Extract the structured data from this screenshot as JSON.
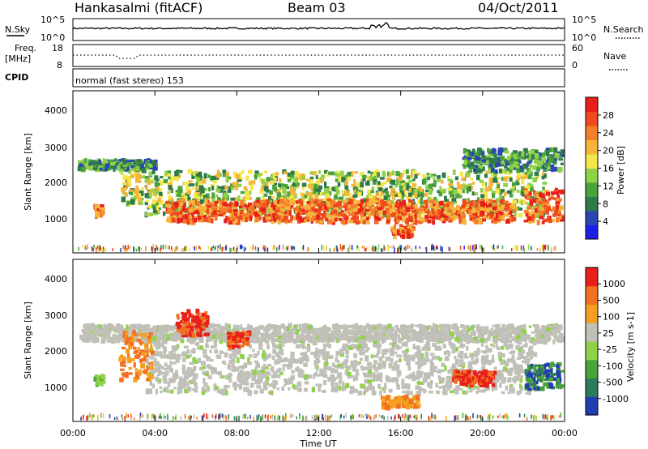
{
  "header": {
    "station": "Hankasalmi (fitACF)",
    "beam": "Beam 03",
    "date": "04/Oct/2011"
  },
  "noise_panel": {
    "left_label": "N.Sky",
    "right_label": "N.Search",
    "left_ticks": [
      "10^5",
      "10^0"
    ],
    "right_ticks": [
      "10^5",
      "10^0"
    ]
  },
  "freq_panel": {
    "left_label_line1": "Freq.",
    "left_label_line2": "[MHz]",
    "right_label": "Nave",
    "left_ticks": [
      "18",
      "8"
    ],
    "right_ticks": [
      "60",
      "0"
    ]
  },
  "cpid_panel": {
    "label": "CPID",
    "text": "normal (fast stereo) 153"
  },
  "time_axis": {
    "label": "Time UT",
    "ticks": [
      "00:00",
      "04:00",
      "08:00",
      "12:00",
      "16:00",
      "20:00",
      "00:00"
    ]
  },
  "chart_data": [
    {
      "type": "heatmap",
      "name": "power",
      "ylabel": "Slant Range [km]",
      "yticks": [
        "1000",
        "2000",
        "3000",
        "4000"
      ],
      "ylim": [
        180,
        4600
      ],
      "xlim_hours": [
        0,
        24
      ],
      "colorbar": {
        "label": "Power [dB]",
        "ticks": [
          "4",
          "8",
          "12",
          "16",
          "20",
          "24",
          "28"
        ],
        "colors": [
          "#1f1fe8",
          "#2a46b0",
          "#2f7a4a",
          "#49a23a",
          "#8fd24a",
          "#f3e84a",
          "#f6b43a",
          "#f37f2a",
          "#ee4a1e",
          "#e8201a"
        ]
      },
      "bands": [
        {
          "t0": 0.2,
          "t1": 23.8,
          "r0": 250,
          "r1": 350,
          "level": "scatter"
        },
        {
          "t0": 1.0,
          "t1": 1.4,
          "r0": 1150,
          "r1": 1450,
          "level": "strong"
        },
        {
          "t0": 2.3,
          "t1": 3.4,
          "r0": 1500,
          "r1": 2500,
          "level": "mid"
        },
        {
          "t0": 3.5,
          "t1": 23.0,
          "r0": 1200,
          "r1": 2400,
          "level": "mid"
        },
        {
          "t0": 4.5,
          "t1": 21.5,
          "r0": 1000,
          "r1": 1600,
          "level": "strong"
        },
        {
          "t0": 0.2,
          "t1": 4.0,
          "r0": 2450,
          "r1": 2700,
          "level": "weak"
        },
        {
          "t0": 19.0,
          "t1": 23.8,
          "r0": 2400,
          "r1": 3000,
          "level": "weak"
        },
        {
          "t0": 15.5,
          "t1": 16.5,
          "r0": 600,
          "r1": 900,
          "level": "strong"
        },
        {
          "t0": 22.0,
          "t1": 23.8,
          "r0": 1000,
          "r1": 1900,
          "level": "strong"
        }
      ]
    },
    {
      "type": "heatmap",
      "name": "velocity",
      "ylabel": "Slant Range [km]",
      "yticks": [
        "1000",
        "2000",
        "3000",
        "4000"
      ],
      "ylim": [
        180,
        4600
      ],
      "xlim_hours": [
        0,
        24
      ],
      "colorbar": {
        "label": "Velocity [m s-1]",
        "ticks": [
          "1000",
          "500",
          "100",
          "25",
          "-25",
          "-100",
          "-500",
          "-1000"
        ],
        "colors": [
          "#1f3fb0",
          "#2f7a5a",
          "#49a23a",
          "#8fd24a",
          "#c0c0b8",
          "#f3a020",
          "#f37020",
          "#e8201a"
        ]
      },
      "bands": [
        {
          "t0": 0.2,
          "t1": 23.8,
          "r0": 250,
          "r1": 350,
          "level": "scatter"
        },
        {
          "t0": 0.3,
          "t1": 23.8,
          "r0": 2350,
          "r1": 2800,
          "level": "gray"
        },
        {
          "t0": 3.5,
          "t1": 22.5,
          "r0": 950,
          "r1": 2300,
          "level": "gray"
        },
        {
          "t0": 2.2,
          "t1": 3.8,
          "r0": 1300,
          "r1": 2600,
          "level": "orange"
        },
        {
          "t0": 1.0,
          "t1": 1.4,
          "r0": 1150,
          "r1": 1450,
          "level": "green"
        },
        {
          "t0": 5.0,
          "t1": 6.5,
          "r0": 2500,
          "r1": 3200,
          "level": "red"
        },
        {
          "t0": 7.5,
          "t1": 8.5,
          "r0": 2200,
          "r1": 2600,
          "level": "red"
        },
        {
          "t0": 15.0,
          "t1": 16.8,
          "r0": 550,
          "r1": 850,
          "level": "orange"
        },
        {
          "t0": 18.5,
          "t1": 20.5,
          "r0": 1150,
          "r1": 1550,
          "level": "red"
        },
        {
          "t0": 22.0,
          "t1": 23.8,
          "r0": 1050,
          "r1": 1750,
          "level": "blue"
        }
      ]
    }
  ]
}
